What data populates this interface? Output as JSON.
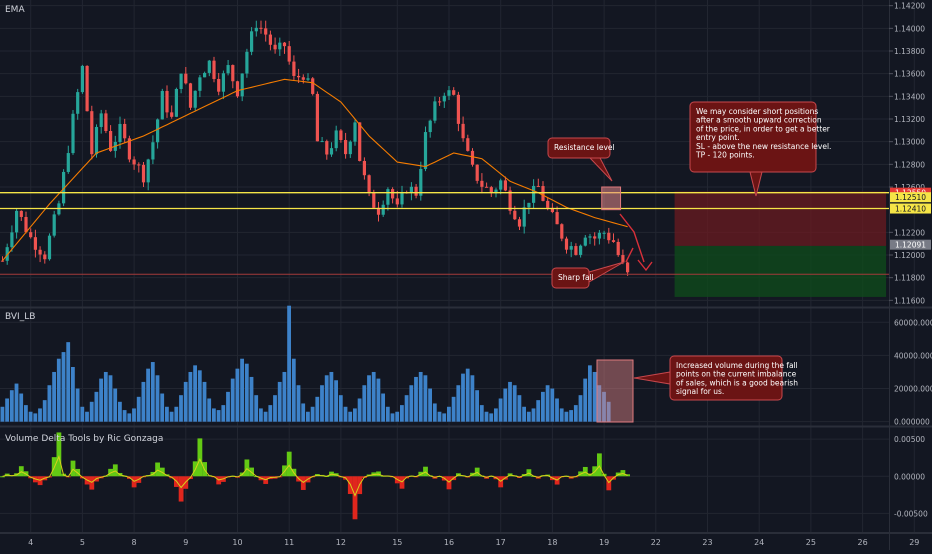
{
  "colors": {
    "background": "#131722",
    "grid": "#222631",
    "separator": "#2a2e39",
    "candle_up": "#26a69a",
    "candle_down": "#ef5350",
    "ema": "#f57c00",
    "yellow_line": "#f5e547",
    "red_line": "#a33a3a",
    "zone_red": "#6b1b20",
    "zone_green": "#0f4a1b",
    "volume": "#3d82c9",
    "delta_green": "#63c914",
    "delta_red": "#e0261d",
    "delta_yellow": "#d8d01b",
    "callout_fill": "#6b1414",
    "callout_stroke": "#c8484d",
    "arrow": "#d8303a"
  },
  "panes": {
    "price_title": "EMA",
    "volume_title": "BVI_LB",
    "delta_title": "Volume Delta Tools by Ric Gonzaga"
  },
  "chart_data": [
    {
      "type": "candlestick",
      "title": "EMA",
      "ylim": [
        1.1155,
        1.1425
      ],
      "yticks": [
        "1.14200",
        "1.14000",
        "1.13800",
        "1.13600",
        "1.13400",
        "1.13200",
        "1.13000",
        "1.12800",
        "1.12600",
        "1.12200",
        "1.12000",
        "1.11800",
        "1.11600"
      ],
      "ytick_values": [
        1.142,
        1.14,
        1.138,
        1.136,
        1.134,
        1.132,
        1.13,
        1.128,
        1.126,
        1.122,
        1.12,
        1.118,
        1.116
      ],
      "x_day_labels": [
        "4",
        "5",
        "8",
        "9",
        "10",
        "11",
        "12",
        "15",
        "16",
        "17",
        "18",
        "19",
        "22",
        "23",
        "24",
        "25",
        "26",
        "29"
      ],
      "x_day_index": [
        6,
        17,
        28,
        39,
        50,
        61,
        72,
        84,
        95,
        106,
        117,
        128,
        139,
        150,
        161,
        172,
        183,
        194
      ],
      "price_anchors": [
        [
          0,
          1.1195
        ],
        [
          3,
          1.124
        ],
        [
          6,
          1.1215
        ],
        [
          9,
          1.12
        ],
        [
          12,
          1.1245
        ],
        [
          15,
          1.132
        ],
        [
          17,
          1.1365
        ],
        [
          19,
          1.129
        ],
        [
          21,
          1.1325
        ],
        [
          23,
          1.1295
        ],
        [
          25,
          1.131
        ],
        [
          27,
          1.129
        ],
        [
          30,
          1.127
        ],
        [
          32,
          1.13
        ],
        [
          34,
          1.134
        ],
        [
          36,
          1.132
        ],
        [
          38,
          1.1365
        ],
        [
          40,
          1.133
        ],
        [
          42,
          1.136
        ],
        [
          44,
          1.137
        ],
        [
          46,
          1.135
        ],
        [
          48,
          1.1365
        ],
        [
          50,
          1.1345
        ],
        [
          52,
          1.138
        ],
        [
          54,
          1.1405
        ],
        [
          56,
          1.1395
        ],
        [
          58,
          1.1378
        ],
        [
          60,
          1.1385
        ],
        [
          62,
          1.1355
        ],
        [
          64,
          1.136
        ],
        [
          66,
          1.134
        ],
        [
          67,
          1.13
        ],
        [
          69,
          1.129
        ],
        [
          71,
          1.1305
        ],
        [
          73,
          1.129
        ],
        [
          75,
          1.132
        ],
        [
          76,
          1.1285
        ],
        [
          78,
          1.125
        ],
        [
          80,
          1.124
        ],
        [
          82,
          1.126
        ],
        [
          84,
          1.124
        ],
        [
          86,
          1.126
        ],
        [
          88,
          1.1255
        ],
        [
          90,
          1.1305
        ],
        [
          92,
          1.133
        ],
        [
          94,
          1.1345
        ],
        [
          96,
          1.134
        ],
        [
          98,
          1.13
        ],
        [
          100,
          1.1275
        ],
        [
          102,
          1.1262
        ],
        [
          104,
          1.1255
        ],
        [
          106,
          1.1265
        ],
        [
          108,
          1.1245
        ],
        [
          110,
          1.123
        ],
        [
          112,
          1.125
        ],
        [
          114,
          1.126
        ],
        [
          116,
          1.124
        ],
        [
          118,
          1.1225
        ],
        [
          120,
          1.121
        ],
        [
          122,
          1.1205
        ],
        [
          124,
          1.122
        ],
        [
          126,
          1.1215
        ],
        [
          128,
          1.122
        ],
        [
          130,
          1.1212
        ],
        [
          131,
          1.12
        ],
        [
          132,
          1.119
        ],
        [
          133,
          1.1182
        ]
      ],
      "ema_anchors": [
        [
          0,
          1.1195
        ],
        [
          10,
          1.1245
        ],
        [
          20,
          1.129
        ],
        [
          30,
          1.1305
        ],
        [
          40,
          1.1325
        ],
        [
          50,
          1.1345
        ],
        [
          60,
          1.1355
        ],
        [
          66,
          1.1352
        ],
        [
          72,
          1.1335
        ],
        [
          78,
          1.1305
        ],
        [
          84,
          1.1282
        ],
        [
          90,
          1.1278
        ],
        [
          96,
          1.129
        ],
        [
          102,
          1.1285
        ],
        [
          108,
          1.1265
        ],
        [
          114,
          1.1255
        ],
        [
          120,
          1.1242
        ],
        [
          126,
          1.1233
        ],
        [
          133,
          1.1225
        ]
      ],
      "price_last": {
        "value": 1.12091,
        "label": "1.12091"
      },
      "levels": [
        {
          "name": "upper yellow",
          "value": 1.1255,
          "label": "1.12550"
        },
        {
          "name": "middle yellow",
          "value": 1.1251,
          "label": "1.12510"
        },
        {
          "name": "lower yellow",
          "value": 1.1241,
          "label": "1.12410"
        },
        {
          "name": "support red",
          "value": 1.1183
        }
      ],
      "trade_zones": {
        "start_index": 143,
        "end_index": 188,
        "stop_top": 1.1256,
        "entry": 1.1208,
        "target_bottom": 1.1163
      },
      "resistance_box": {
        "from_index": 127.5,
        "to_index": 131.5,
        "low": 1.124,
        "high": 1.126
      },
      "annotations": [
        {
          "key": "resistance",
          "text": [
            "Resistance level"
          ]
        },
        {
          "key": "sharp_fall",
          "text": [
            "Sharp fall"
          ]
        },
        {
          "key": "strategy",
          "text": [
            "We may consider short positions",
            "after a smooth upward correction",
            "of the price, in order to get a better",
            "entry point.",
            "SL - above the new resistance level.",
            "TP - 120 points."
          ]
        }
      ]
    },
    {
      "type": "bar",
      "title": "BVI_LB",
      "ylim": [
        -2000,
        68000
      ],
      "yticks": [
        "60000.000000",
        "40000.000000",
        "20000.000000",
        "0.000000"
      ],
      "ytick_values": [
        60000,
        40000,
        20000,
        0
      ],
      "values": [
        9000,
        14000,
        19000,
        23000,
        17000,
        10000,
        6000,
        5000,
        8000,
        13000,
        22000,
        30000,
        38000,
        42000,
        48000,
        33000,
        20000,
        9000,
        6000,
        12000,
        18000,
        26000,
        30000,
        28000,
        20000,
        12000,
        7000,
        5000,
        8000,
        15000,
        24000,
        32000,
        36000,
        28000,
        17000,
        9000,
        6000,
        9000,
        16000,
        24000,
        30000,
        34000,
        31000,
        24000,
        14000,
        8000,
        7000,
        10000,
        18000,
        26000,
        32000,
        38000,
        35000,
        27000,
        16000,
        8000,
        6000,
        10000,
        16000,
        24000,
        30000,
        70000,
        38000,
        22000,
        11000,
        6000,
        9000,
        15000,
        22000,
        28000,
        30000,
        25000,
        16000,
        9000,
        6000,
        8000,
        14000,
        22000,
        28000,
        30000,
        26000,
        17000,
        9000,
        5000,
        6000,
        10000,
        16000,
        22000,
        27000,
        30000,
        28000,
        20000,
        11000,
        6000,
        5000,
        9000,
        15000,
        22000,
        29000,
        32000,
        28000,
        19000,
        10000,
        6000,
        5000,
        8000,
        14000,
        20000,
        24000,
        22000,
        16000,
        9000,
        6000,
        8000,
        13000,
        18000,
        22000,
        20000,
        14000,
        8000,
        6000,
        7000,
        10000,
        16000,
        26000,
        34000,
        30000,
        22000,
        18000,
        12000
      ],
      "annotation": [
        "Increased volume during the fall",
        "points on the current imbalance",
        "of sales, which is a good bearish",
        "signal for us."
      ]
    },
    {
      "type": "area",
      "title": "Volume Delta Tools by Ric Gonzaga",
      "ylim": [
        -0.0075,
        0.0065
      ],
      "yticks": [
        "0.00500",
        "0.00000",
        "-0.00500"
      ],
      "ytick_values": [
        0.005,
        0.0,
        -0.005
      ],
      "spikes": [
        [
          4,
          0.0011
        ],
        [
          8,
          -0.0012
        ],
        [
          12,
          0.0065
        ],
        [
          13,
          -0.0025
        ],
        [
          15,
          0.002
        ],
        [
          19,
          -0.0018
        ],
        [
          24,
          0.0014
        ],
        [
          28,
          -0.0012
        ],
        [
          33,
          0.0018
        ],
        [
          38,
          -0.0035
        ],
        [
          42,
          0.0049
        ],
        [
          46,
          -0.0013
        ],
        [
          52,
          0.0022
        ],
        [
          56,
          -0.0014
        ],
        [
          61,
          0.0035
        ],
        [
          64,
          -0.0022
        ],
        [
          70,
          0.0009
        ],
        [
          75,
          -0.0062
        ],
        [
          80,
          0.001
        ],
        [
          85,
          -0.0018
        ],
        [
          90,
          0.0012
        ],
        [
          95,
          -0.0016
        ],
        [
          101,
          0.0011
        ],
        [
          106,
          -0.0014
        ],
        [
          112,
          0.0009
        ],
        [
          118,
          -0.0012
        ],
        [
          124,
          0.0015
        ],
        [
          127,
          0.0028
        ],
        [
          129,
          -0.002
        ],
        [
          132,
          0.0012
        ]
      ]
    }
  ]
}
